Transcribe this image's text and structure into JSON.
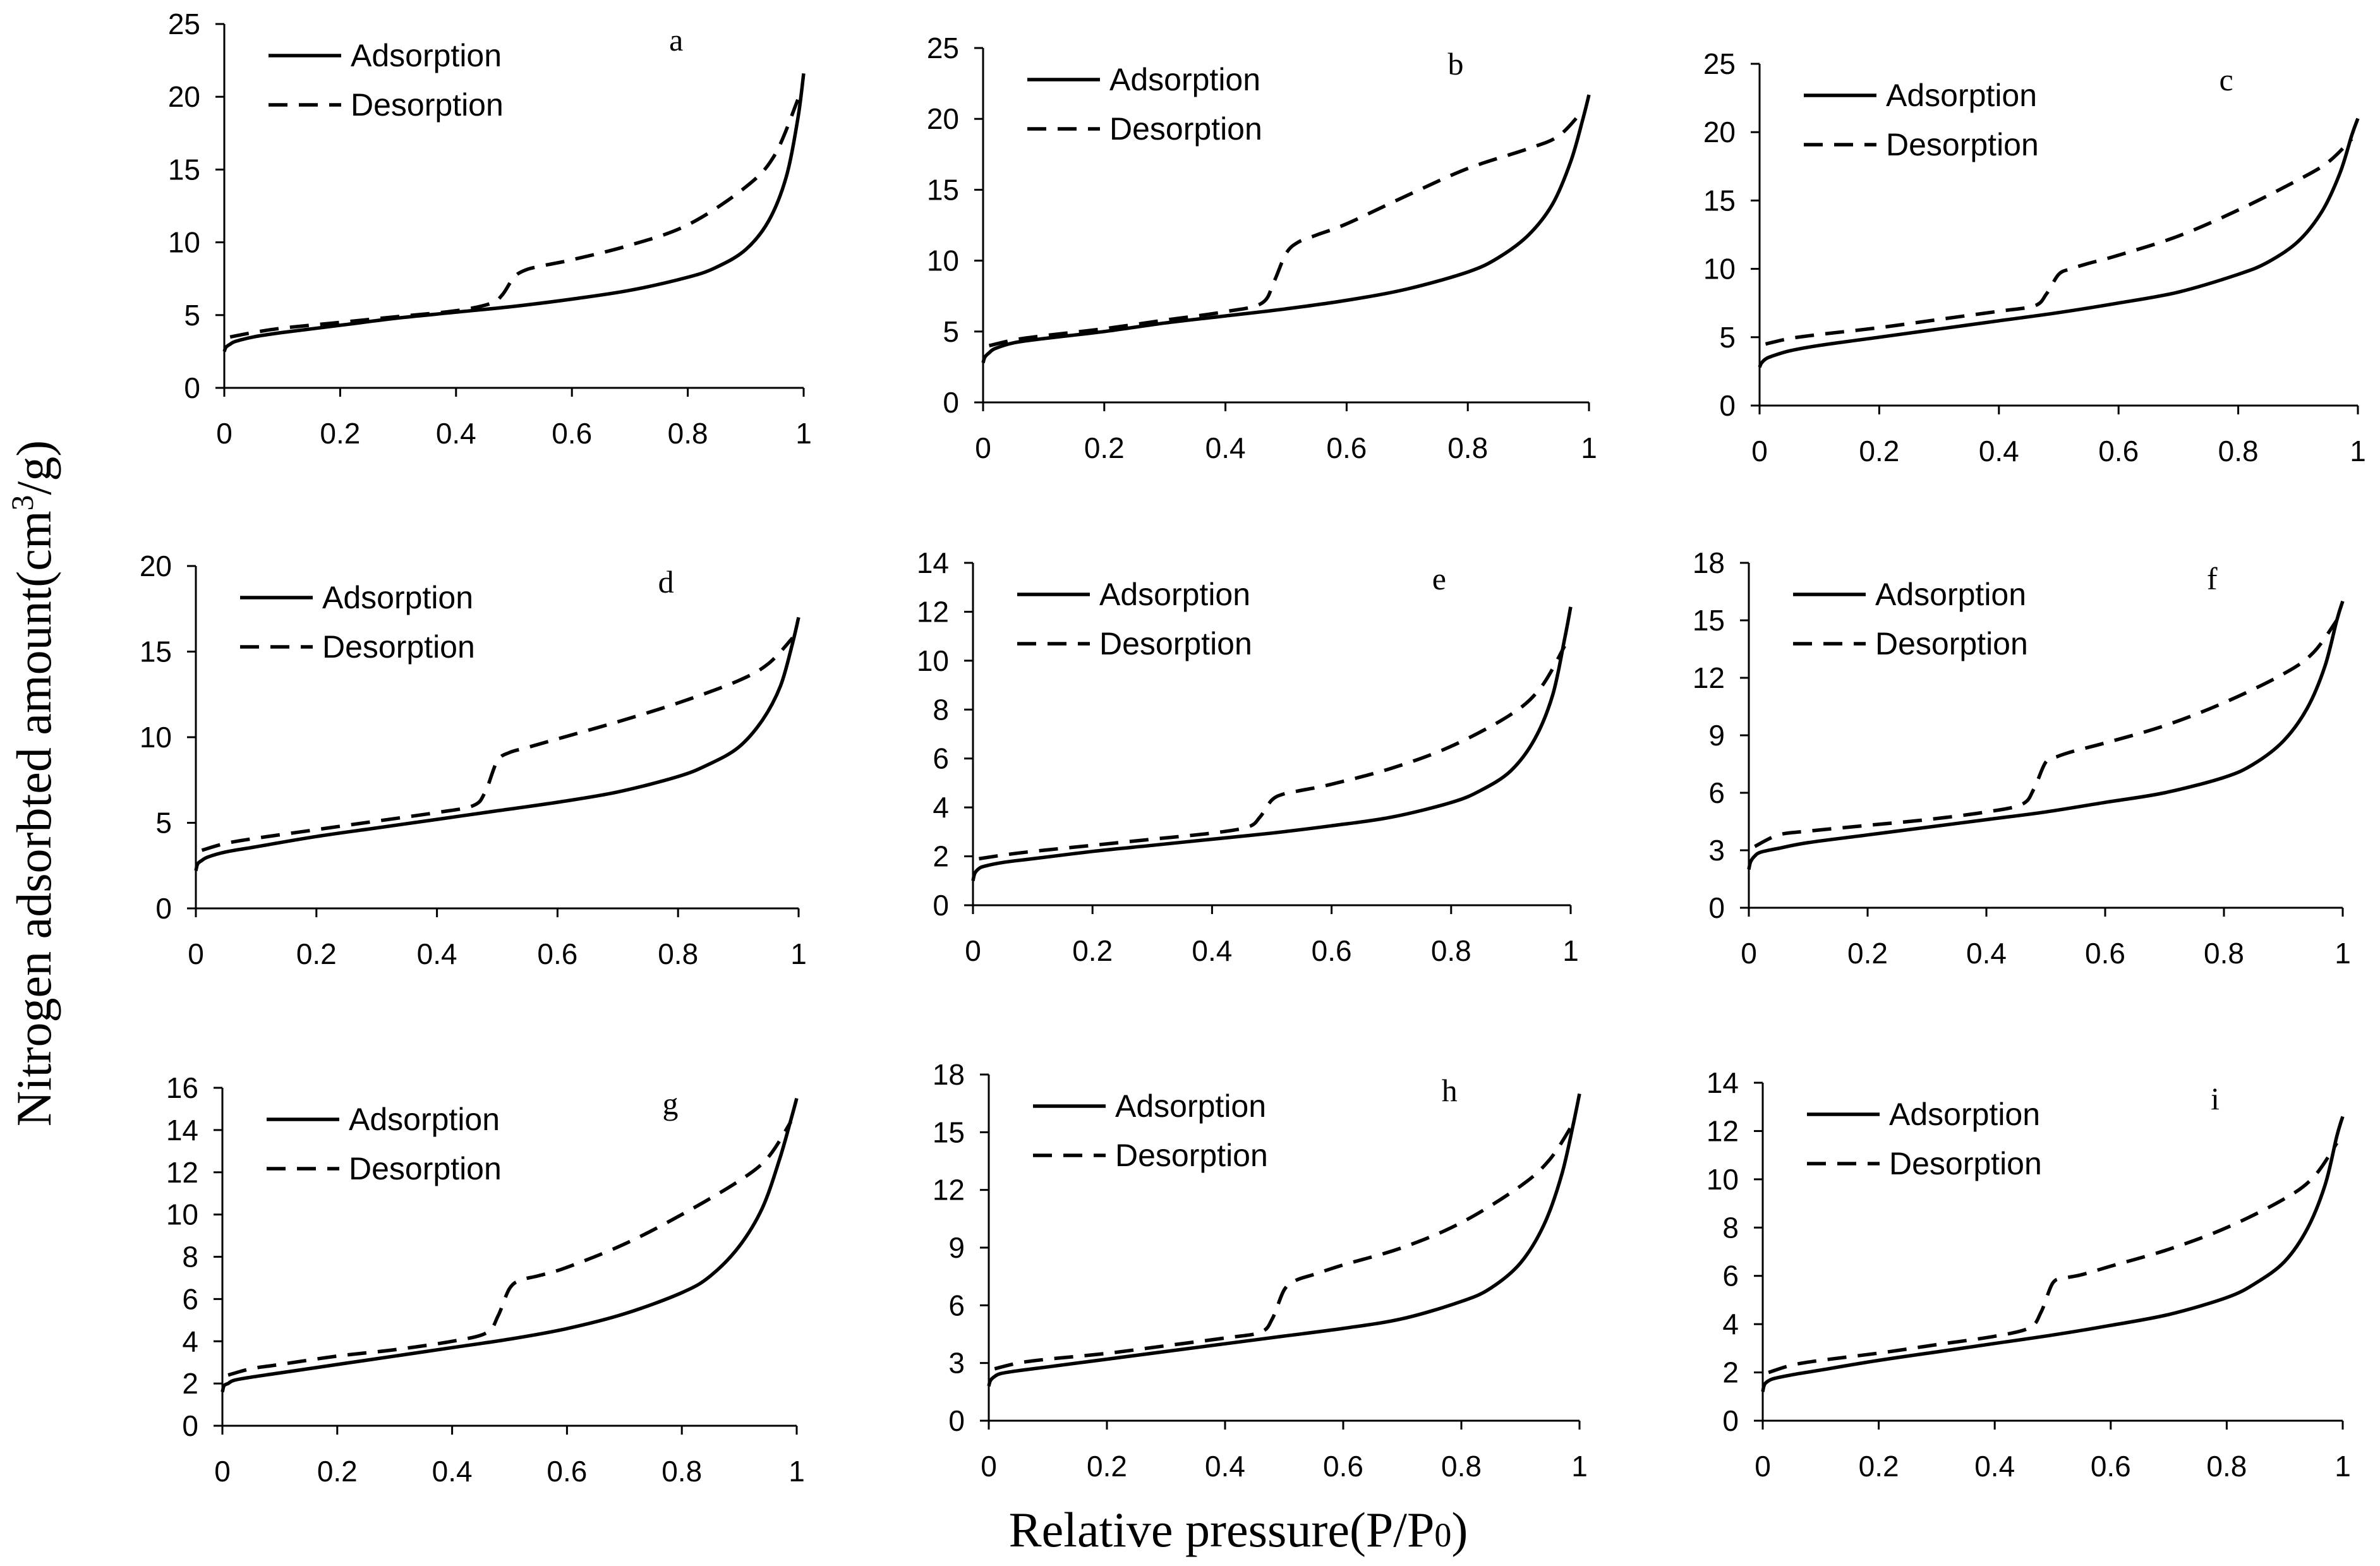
{
  "figure": {
    "ylabel_prefix": "Nitrogen adsorbted amount(cm",
    "ylabel_sup": "3",
    "ylabel_suffix": "/g)",
    "xlabel_prefix": "Relative pressure(P/P",
    "xlabel_sub": "0",
    "xlabel_suffix": ")"
  },
  "chart_data": [
    {
      "type": "line",
      "label": "a",
      "x_ticks": [
        "0",
        "0.2",
        "0.4",
        "0.6",
        "0.8",
        "1"
      ],
      "xlim": [
        0,
        1
      ],
      "y_ticks": [
        "0",
        "5",
        "10",
        "15",
        "20",
        "25"
      ],
      "ylim": [
        0,
        25
      ],
      "legend": [
        "Adsorption",
        "Desorption"
      ],
      "series": [
        {
          "name": "Adsorption",
          "style": "solid",
          "x": [
            0,
            0.003,
            0.01,
            0.02,
            0.05,
            0.1,
            0.2,
            0.3,
            0.4,
            0.5,
            0.6,
            0.7,
            0.8,
            0.85,
            0.9,
            0.94,
            0.97,
            0.99,
            1.0
          ],
          "y": [
            2.5,
            2.8,
            3.0,
            3.2,
            3.5,
            3.8,
            4.3,
            4.8,
            5.2,
            5.6,
            6.1,
            6.7,
            7.6,
            8.3,
            9.5,
            11.5,
            14.5,
            18.5,
            21.6
          ]
        },
        {
          "name": "Desorption",
          "style": "dashed",
          "x": [
            0.01,
            0.05,
            0.1,
            0.2,
            0.3,
            0.4,
            0.46,
            0.48,
            0.5,
            0.52,
            0.55,
            0.6,
            0.7,
            0.8,
            0.9,
            0.95,
            0.99
          ],
          "y": [
            3.5,
            3.8,
            4.1,
            4.5,
            4.9,
            5.3,
            5.8,
            6.4,
            7.6,
            8.1,
            8.4,
            8.8,
            9.8,
            11.2,
            13.8,
            16.0,
            19.8
          ]
        }
      ]
    },
    {
      "type": "line",
      "label": "b",
      "x_ticks": [
        "0",
        "0.2",
        "0.4",
        "0.6",
        "0.8",
        "1"
      ],
      "xlim": [
        0,
        1
      ],
      "y_ticks": [
        "0",
        "5",
        "10",
        "15",
        "20",
        "25"
      ],
      "ylim": [
        0,
        25
      ],
      "legend": [
        "Adsorption",
        "Desorption"
      ],
      "series": [
        {
          "name": "Adsorption",
          "style": "solid",
          "x": [
            0,
            0.003,
            0.01,
            0.02,
            0.05,
            0.1,
            0.2,
            0.3,
            0.4,
            0.5,
            0.6,
            0.7,
            0.8,
            0.85,
            0.9,
            0.94,
            0.97,
            0.99,
            1.0
          ],
          "y": [
            2.8,
            3.2,
            3.5,
            3.8,
            4.2,
            4.5,
            5.0,
            5.6,
            6.1,
            6.6,
            7.2,
            8.0,
            9.2,
            10.2,
            11.8,
            14.0,
            17.0,
            20.0,
            21.7
          ]
        },
        {
          "name": "Desorption",
          "style": "dashed",
          "x": [
            0.01,
            0.05,
            0.1,
            0.2,
            0.3,
            0.4,
            0.46,
            0.48,
            0.5,
            0.52,
            0.55,
            0.6,
            0.7,
            0.8,
            0.9,
            0.95,
            0.99
          ],
          "y": [
            4.0,
            4.4,
            4.7,
            5.2,
            5.8,
            6.4,
            7.0,
            8.5,
            10.5,
            11.3,
            11.8,
            12.6,
            14.6,
            16.5,
            17.9,
            18.8,
            20.6
          ]
        }
      ]
    },
    {
      "type": "line",
      "label": "c",
      "x_ticks": [
        "0",
        "0.2",
        "0.4",
        "0.6",
        "0.8",
        "1"
      ],
      "xlim": [
        0,
        1
      ],
      "y_ticks": [
        "0",
        "5",
        "10",
        "15",
        "20",
        "25"
      ],
      "ylim": [
        0,
        25
      ],
      "legend": [
        "Adsorption",
        "Desorption"
      ],
      "series": [
        {
          "name": "Adsorption",
          "style": "solid",
          "x": [
            0,
            0.003,
            0.01,
            0.02,
            0.05,
            0.1,
            0.2,
            0.3,
            0.4,
            0.5,
            0.6,
            0.7,
            0.8,
            0.85,
            0.9,
            0.94,
            0.97,
            0.99,
            1.0
          ],
          "y": [
            2.8,
            3.1,
            3.4,
            3.6,
            4.0,
            4.4,
            5.0,
            5.6,
            6.2,
            6.8,
            7.5,
            8.3,
            9.6,
            10.5,
            12.0,
            14.2,
            17.0,
            19.8,
            21.0
          ]
        },
        {
          "name": "Desorption",
          "style": "dashed",
          "x": [
            0.01,
            0.05,
            0.1,
            0.2,
            0.3,
            0.4,
            0.46,
            0.48,
            0.5,
            0.52,
            0.55,
            0.6,
            0.7,
            0.8,
            0.9,
            0.95,
            0.99
          ],
          "y": [
            4.5,
            4.9,
            5.2,
            5.7,
            6.3,
            6.9,
            7.3,
            8.2,
            9.6,
            10.0,
            10.4,
            11.0,
            12.4,
            14.3,
            16.5,
            17.8,
            19.5
          ]
        }
      ]
    },
    {
      "type": "line",
      "label": "d",
      "x_ticks": [
        "0",
        "0.2",
        "0.4",
        "0.6",
        "0.8",
        "1"
      ],
      "xlim": [
        0,
        1
      ],
      "y_ticks": [
        "0",
        "5",
        "10",
        "15",
        "20"
      ],
      "ylim": [
        0,
        20
      ],
      "legend": [
        "Adsorption",
        "Desorption"
      ],
      "series": [
        {
          "name": "Adsorption",
          "style": "solid",
          "x": [
            0,
            0.003,
            0.01,
            0.02,
            0.05,
            0.1,
            0.2,
            0.3,
            0.4,
            0.5,
            0.6,
            0.7,
            0.8,
            0.85,
            0.9,
            0.94,
            0.97,
            0.99,
            1.0
          ],
          "y": [
            2.2,
            2.6,
            2.8,
            3.0,
            3.3,
            3.6,
            4.2,
            4.7,
            5.2,
            5.7,
            6.2,
            6.8,
            7.7,
            8.4,
            9.4,
            11.0,
            13.0,
            15.5,
            17.0
          ]
        },
        {
          "name": "Desorption",
          "style": "dashed",
          "x": [
            0.01,
            0.05,
            0.1,
            0.2,
            0.3,
            0.4,
            0.46,
            0.48,
            0.5,
            0.52,
            0.55,
            0.6,
            0.7,
            0.8,
            0.9,
            0.95,
            0.99
          ],
          "y": [
            3.4,
            3.8,
            4.1,
            4.6,
            5.1,
            5.6,
            6.0,
            6.8,
            8.6,
            9.1,
            9.4,
            9.9,
            10.9,
            12.0,
            13.3,
            14.3,
            15.8
          ]
        }
      ]
    },
    {
      "type": "line",
      "label": "e",
      "x_ticks": [
        "0",
        "0.2",
        "0.4",
        "0.6",
        "0.8",
        "1"
      ],
      "xlim": [
        0,
        1
      ],
      "y_ticks": [
        "0",
        "2",
        "4",
        "6",
        "8",
        "10",
        "12",
        "14"
      ],
      "ylim": [
        0,
        14
      ],
      "legend": [
        "Adsorption",
        "Desorption"
      ],
      "series": [
        {
          "name": "Adsorption",
          "style": "solid",
          "x": [
            0,
            0.003,
            0.01,
            0.02,
            0.05,
            0.1,
            0.2,
            0.3,
            0.4,
            0.5,
            0.6,
            0.7,
            0.8,
            0.85,
            0.9,
            0.94,
            0.97,
            0.99,
            1.0
          ],
          "y": [
            1.0,
            1.3,
            1.5,
            1.6,
            1.75,
            1.9,
            2.2,
            2.45,
            2.7,
            2.95,
            3.25,
            3.6,
            4.2,
            4.7,
            5.5,
            6.8,
            8.6,
            10.9,
            12.2
          ]
        },
        {
          "name": "Desorption",
          "style": "dashed",
          "x": [
            0.01,
            0.05,
            0.1,
            0.2,
            0.3,
            0.4,
            0.46,
            0.48,
            0.5,
            0.52,
            0.55,
            0.6,
            0.7,
            0.8,
            0.9,
            0.95,
            0.99
          ],
          "y": [
            1.9,
            2.05,
            2.2,
            2.45,
            2.7,
            2.95,
            3.2,
            3.6,
            4.3,
            4.55,
            4.7,
            4.95,
            5.6,
            6.5,
            7.8,
            8.9,
            10.6
          ]
        }
      ]
    },
    {
      "type": "line",
      "label": "f",
      "x_ticks": [
        "0",
        "0.2",
        "0.4",
        "0.6",
        "0.8",
        "1"
      ],
      "xlim": [
        0,
        1
      ],
      "y_ticks": [
        "0",
        "3",
        "6",
        "9",
        "12",
        "15",
        "18"
      ],
      "ylim": [
        0,
        18
      ],
      "legend": [
        "Adsorption",
        "Desorption"
      ],
      "series": [
        {
          "name": "Adsorption",
          "style": "solid",
          "x": [
            0,
            0.003,
            0.01,
            0.02,
            0.05,
            0.1,
            0.2,
            0.3,
            0.4,
            0.5,
            0.6,
            0.7,
            0.8,
            0.85,
            0.9,
            0.94,
            0.97,
            0.99,
            1.0
          ],
          "y": [
            2.0,
            2.4,
            2.7,
            2.9,
            3.1,
            3.4,
            3.8,
            4.2,
            4.6,
            5.0,
            5.5,
            6.0,
            6.8,
            7.5,
            8.7,
            10.4,
            12.6,
            15.0,
            16.0
          ]
        },
        {
          "name": "Desorption",
          "style": "dashed",
          "x": [
            0.01,
            0.05,
            0.1,
            0.2,
            0.3,
            0.4,
            0.46,
            0.48,
            0.5,
            0.52,
            0.55,
            0.6,
            0.7,
            0.8,
            0.9,
            0.95,
            0.99
          ],
          "y": [
            3.2,
            3.8,
            4.0,
            4.3,
            4.6,
            5.0,
            5.4,
            6.2,
            7.6,
            7.9,
            8.2,
            8.6,
            9.5,
            10.7,
            12.2,
            13.3,
            15.0
          ]
        }
      ]
    },
    {
      "type": "line",
      "label": "g",
      "x_ticks": [
        "0",
        "0.2",
        "0.4",
        "0.6",
        "0.8",
        "1"
      ],
      "xlim": [
        0,
        1
      ],
      "y_ticks": [
        "0",
        "2",
        "4",
        "6",
        "8",
        "10",
        "12",
        "14",
        "16"
      ],
      "ylim": [
        0,
        16
      ],
      "legend": [
        "Adsorption",
        "Desorption"
      ],
      "series": [
        {
          "name": "Adsorption",
          "style": "solid",
          "x": [
            0,
            0.003,
            0.01,
            0.02,
            0.05,
            0.1,
            0.2,
            0.3,
            0.4,
            0.5,
            0.6,
            0.7,
            0.8,
            0.85,
            0.9,
            0.94,
            0.97,
            0.99,
            1.0
          ],
          "y": [
            1.6,
            1.9,
            2.0,
            2.15,
            2.3,
            2.5,
            2.9,
            3.3,
            3.7,
            4.1,
            4.6,
            5.3,
            6.3,
            7.1,
            8.5,
            10.3,
            12.6,
            14.5,
            15.5
          ]
        },
        {
          "name": "Desorption",
          "style": "dashed",
          "x": [
            0.01,
            0.05,
            0.1,
            0.2,
            0.3,
            0.4,
            0.46,
            0.48,
            0.5,
            0.52,
            0.55,
            0.6,
            0.7,
            0.8,
            0.9,
            0.95,
            0.99
          ],
          "y": [
            2.4,
            2.7,
            2.9,
            3.3,
            3.6,
            4.0,
            4.4,
            5.2,
            6.5,
            6.9,
            7.1,
            7.5,
            8.6,
            10.0,
            11.6,
            12.7,
            14.4
          ]
        }
      ]
    },
    {
      "type": "line",
      "label": "h",
      "x_ticks": [
        "0",
        "0.2",
        "0.4",
        "0.6",
        "0.8",
        "1"
      ],
      "xlim": [
        0,
        1
      ],
      "y_ticks": [
        "0",
        "3",
        "6",
        "9",
        "12",
        "15",
        "18"
      ],
      "ylim": [
        0,
        18
      ],
      "legend": [
        "Adsorption",
        "Desorption"
      ],
      "series": [
        {
          "name": "Adsorption",
          "style": "solid",
          "x": [
            0,
            0.003,
            0.01,
            0.02,
            0.05,
            0.1,
            0.2,
            0.3,
            0.4,
            0.5,
            0.6,
            0.7,
            0.8,
            0.85,
            0.9,
            0.94,
            0.97,
            0.99,
            1.0
          ],
          "y": [
            1.8,
            2.1,
            2.3,
            2.45,
            2.6,
            2.8,
            3.2,
            3.6,
            4.0,
            4.4,
            4.8,
            5.3,
            6.2,
            6.9,
            8.2,
            10.2,
            12.8,
            15.5,
            17.0
          ]
        },
        {
          "name": "Desorption",
          "style": "dashed",
          "x": [
            0.01,
            0.05,
            0.1,
            0.2,
            0.3,
            0.4,
            0.46,
            0.48,
            0.5,
            0.52,
            0.55,
            0.6,
            0.7,
            0.8,
            0.9,
            0.95,
            0.99
          ],
          "y": [
            2.7,
            3.0,
            3.2,
            3.5,
            3.9,
            4.3,
            4.6,
            5.3,
            6.8,
            7.3,
            7.6,
            8.1,
            9.0,
            10.3,
            12.2,
            13.6,
            15.5
          ]
        }
      ]
    },
    {
      "type": "line",
      "label": "i",
      "x_ticks": [
        "0",
        "0.2",
        "0.4",
        "0.6",
        "0.8",
        "1"
      ],
      "xlim": [
        0,
        1
      ],
      "y_ticks": [
        "0",
        "2",
        "4",
        "6",
        "8",
        "10",
        "12",
        "14"
      ],
      "ylim": [
        0,
        14
      ],
      "legend": [
        "Adsorption",
        "Desorption"
      ],
      "series": [
        {
          "name": "Adsorption",
          "style": "solid",
          "x": [
            0,
            0.003,
            0.01,
            0.02,
            0.05,
            0.1,
            0.2,
            0.3,
            0.4,
            0.5,
            0.6,
            0.7,
            0.8,
            0.85,
            0.9,
            0.94,
            0.97,
            0.99,
            1.0
          ],
          "y": [
            1.2,
            1.5,
            1.65,
            1.75,
            1.9,
            2.1,
            2.5,
            2.85,
            3.2,
            3.55,
            3.95,
            4.4,
            5.1,
            5.7,
            6.6,
            8.0,
            9.8,
            11.8,
            12.6
          ]
        },
        {
          "name": "Desorption",
          "style": "dashed",
          "x": [
            0.01,
            0.05,
            0.1,
            0.2,
            0.3,
            0.4,
            0.46,
            0.48,
            0.5,
            0.52,
            0.55,
            0.6,
            0.7,
            0.8,
            0.9,
            0.95,
            0.99
          ],
          "y": [
            2.0,
            2.3,
            2.5,
            2.8,
            3.15,
            3.5,
            3.85,
            4.5,
            5.7,
            5.9,
            6.05,
            6.4,
            7.1,
            8.0,
            9.2,
            10.1,
            11.5
          ]
        }
      ]
    }
  ]
}
